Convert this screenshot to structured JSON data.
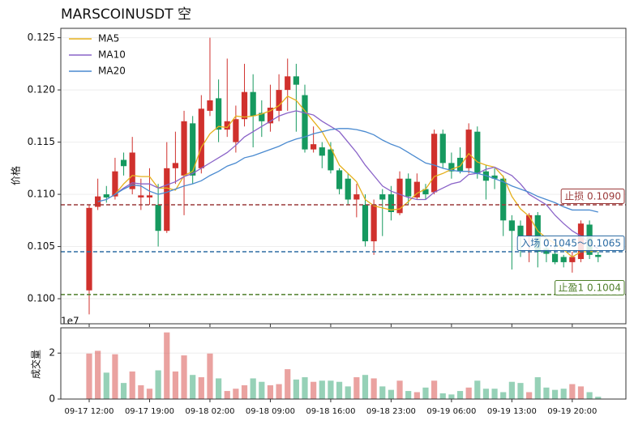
{
  "chart_data": [
    {
      "type": "candlestick",
      "title": "MARSCOINUSDT  空",
      "ylabel": "价格",
      "up_color": "#d0312d",
      "down_color": "#16995f",
      "open": [
        0.1008,
        0.1088,
        0.11,
        0.1098,
        0.1133,
        0.1105,
        0.1097,
        0.1097,
        0.109,
        0.1065,
        0.1125,
        0.1118,
        0.1168,
        0.1125,
        0.118,
        0.1192,
        0.1162,
        0.115,
        0.1172,
        0.1198,
        0.1178,
        0.1168,
        0.118,
        0.12,
        0.1213,
        0.1195,
        0.1143,
        0.1145,
        0.1143,
        0.1123,
        0.1115,
        0.1095,
        0.109,
        0.1055,
        0.11,
        0.11,
        0.1082,
        0.1115,
        0.1097,
        0.1105,
        0.1102,
        0.1158,
        0.113,
        0.1135,
        0.1125,
        0.116,
        0.1122,
        0.1118,
        0.1115,
        0.1075,
        0.107,
        0.106,
        0.108,
        0.1048,
        0.1043,
        0.104,
        0.1035,
        0.1038,
        0.1071,
        0.1042
      ],
      "high": [
        0.109,
        0.1115,
        0.1108,
        0.1135,
        0.114,
        0.1155,
        0.1115,
        0.1125,
        0.111,
        0.115,
        0.116,
        0.118,
        0.1175,
        0.1195,
        0.125,
        0.121,
        0.123,
        0.1185,
        0.1225,
        0.1215,
        0.119,
        0.1205,
        0.1215,
        0.123,
        0.1225,
        0.1205,
        0.1165,
        0.115,
        0.115,
        0.1125,
        0.112,
        0.111,
        0.11,
        0.1095,
        0.1105,
        0.1108,
        0.1122,
        0.112,
        0.112,
        0.111,
        0.1162,
        0.1162,
        0.114,
        0.1145,
        0.1168,
        0.1165,
        0.1128,
        0.1125,
        0.1118,
        0.108,
        0.1075,
        0.1082,
        0.1083,
        0.1052,
        0.105,
        0.1042,
        0.1045,
        0.1075,
        0.1075,
        0.1045
      ],
      "low": [
        0.0985,
        0.1085,
        0.1092,
        0.1095,
        0.1118,
        0.11,
        0.1085,
        0.109,
        0.105,
        0.1063,
        0.111,
        0.108,
        0.111,
        0.112,
        0.1175,
        0.115,
        0.1155,
        0.114,
        0.1165,
        0.1145,
        0.1155,
        0.116,
        0.117,
        0.118,
        0.116,
        0.114,
        0.114,
        0.1125,
        0.112,
        0.11,
        0.109,
        0.1078,
        0.105,
        0.1042,
        0.106,
        0.1075,
        0.108,
        0.109,
        0.1095,
        0.1095,
        0.11,
        0.1125,
        0.1115,
        0.112,
        0.112,
        0.1115,
        0.1095,
        0.1105,
        0.106,
        0.1028,
        0.104,
        0.1035,
        0.103,
        0.1035,
        0.1033,
        0.103,
        0.1025,
        0.1035,
        0.1038,
        0.1035
      ],
      "close": [
        0.1087,
        0.1098,
        0.1097,
        0.1122,
        0.1127,
        0.114,
        0.1099,
        0.1099,
        0.1065,
        0.1125,
        0.113,
        0.117,
        0.1118,
        0.1182,
        0.119,
        0.1162,
        0.117,
        0.1172,
        0.1198,
        0.1175,
        0.117,
        0.1183,
        0.12,
        0.1213,
        0.1205,
        0.1143,
        0.1148,
        0.1137,
        0.1123,
        0.1105,
        0.1095,
        0.11,
        0.1055,
        0.109,
        0.1095,
        0.1083,
        0.1115,
        0.1098,
        0.1112,
        0.11,
        0.1158,
        0.113,
        0.1122,
        0.1122,
        0.1162,
        0.112,
        0.1113,
        0.1115,
        0.1075,
        0.1065,
        0.106,
        0.108,
        0.1045,
        0.1043,
        0.1035,
        0.1035,
        0.104,
        0.1072,
        0.1042,
        0.104
      ],
      "series": [
        {
          "name": "MA5",
          "color": "#e6b01c",
          "values": [
            null,
            null,
            null,
            0.11,
            0.111,
            0.1118,
            0.1117,
            0.1117,
            0.1106,
            0.1106,
            0.1104,
            0.1118,
            0.1122,
            0.1145,
            0.1158,
            0.1165,
            0.1164,
            0.1175,
            0.1174,
            0.1175,
            0.1177,
            0.118,
            0.1185,
            0.1194,
            0.119,
            0.118,
            0.117,
            0.116,
            0.1145,
            0.1128,
            0.112,
            0.1112,
            0.1095,
            0.1089,
            0.1087,
            0.1085,
            0.1086,
            0.1093,
            0.1101,
            0.1105,
            0.1117,
            0.112,
            0.1124,
            0.1127,
            0.1139,
            0.1131,
            0.1128,
            0.1126,
            0.1117,
            0.1098,
            0.1086,
            0.1079,
            0.1065,
            0.1058,
            0.1053,
            0.1047,
            0.104,
            0.1045,
            0.1045,
            0.1046
          ]
        },
        {
          "name": "MA10",
          "color": "#8a63c8",
          "values": [
            null,
            null,
            null,
            0.11,
            0.1106,
            0.1111,
            0.111,
            0.111,
            0.1106,
            0.1109,
            0.1112,
            0.1117,
            0.112,
            0.1125,
            0.113,
            0.1135,
            0.114,
            0.1147,
            0.1155,
            0.116,
            0.1165,
            0.117,
            0.1175,
            0.1178,
            0.118,
            0.1178,
            0.1176,
            0.117,
            0.1165,
            0.116,
            0.115,
            0.114,
            0.1128,
            0.1118,
            0.1108,
            0.1103,
            0.11,
            0.1097,
            0.1095,
            0.1095,
            0.1102,
            0.1106,
            0.111,
            0.1112,
            0.1119,
            0.112,
            0.1124,
            0.1126,
            0.1122,
            0.1118,
            0.111,
            0.11,
            0.1095,
            0.109,
            0.108,
            0.1072,
            0.1065,
            0.106,
            0.1053,
            0.1048
          ]
        },
        {
          "name": "MA20",
          "color": "#4a8ad0",
          "values": [
            null,
            0.1093,
            0.1095,
            0.11,
            0.1105,
            0.1109,
            0.1108,
            0.1103,
            0.11,
            0.1102,
            0.1105,
            0.1108,
            0.111,
            0.1113,
            0.1118,
            0.1122,
            0.1127,
            0.113,
            0.1135,
            0.1137,
            0.114,
            0.1143,
            0.1146,
            0.115,
            0.1153,
            0.1155,
            0.1158,
            0.116,
            0.1162,
            0.1163,
            0.1163,
            0.1162,
            0.116,
            0.1157,
            0.1152,
            0.1148,
            0.1145,
            0.114,
            0.1135,
            0.113,
            0.1128,
            0.1125,
            0.1123,
            0.1122,
            0.1122,
            0.112,
            0.1118,
            0.1115,
            0.1112,
            0.1108,
            0.1105,
            0.1102,
            0.1098,
            0.1095,
            0.1092,
            0.1088,
            0.1085,
            0.1085,
            0.1085,
            0.1083
          ]
        }
      ],
      "ylim": [
        0.0976,
        0.1259
      ],
      "yticks": [
        {
          "value": 0.1,
          "label": "0.100"
        },
        {
          "value": 0.105,
          "label": "0.105"
        },
        {
          "value": 0.11,
          "label": "0.110"
        },
        {
          "value": 0.115,
          "label": "0.115"
        },
        {
          "value": 0.12,
          "label": "0.120"
        },
        {
          "value": 0.125,
          "label": "0.125"
        }
      ],
      "grid": true,
      "legend": "upper left",
      "hlines": [
        {
          "value": 0.109,
          "label": "止损 0.1090",
          "color": "#9b3a3a"
        },
        {
          "value": 0.1045,
          "label": "入场 0.1045～0.1065",
          "color": "#2e6da4"
        },
        {
          "value": 0.1004,
          "label": "止盈1 0.1004",
          "color": "#4f7f2a"
        }
      ]
    },
    {
      "type": "bar",
      "ylabel": "成交量",
      "offset_label": "1e7",
      "categories": [
        "09-17 12:00",
        null,
        null,
        null,
        null,
        null,
        null,
        "09-17 19:00",
        null,
        null,
        null,
        null,
        null,
        null,
        "09-18 02:00",
        null,
        null,
        null,
        null,
        null,
        null,
        "09-18 09:00",
        null,
        null,
        null,
        null,
        null,
        null,
        "09-18 16:00",
        null,
        null,
        null,
        null,
        null,
        null,
        "09-18 23:00",
        null,
        null,
        null,
        null,
        null,
        null,
        "09-19 06:00",
        null,
        null,
        null,
        null,
        null,
        null,
        "09-19 13:00",
        null,
        null,
        null,
        null,
        null,
        null,
        "09-19 20:00",
        null,
        null,
        null
      ],
      "values": [
        1.98,
        2.1,
        1.15,
        1.95,
        0.7,
        1.2,
        0.6,
        0.45,
        1.25,
        2.9,
        1.2,
        1.9,
        1.05,
        0.95,
        1.98,
        0.9,
        0.35,
        0.45,
        0.6,
        0.9,
        0.75,
        0.6,
        0.65,
        1.3,
        0.85,
        0.95,
        0.75,
        0.8,
        0.8,
        0.75,
        0.55,
        0.95,
        1.05,
        0.9,
        0.55,
        0.4,
        0.8,
        0.35,
        0.3,
        0.5,
        0.8,
        0.25,
        0.2,
        0.35,
        0.5,
        0.8,
        0.45,
        0.45,
        0.3,
        0.75,
        0.7,
        0.3,
        0.95,
        0.5,
        0.4,
        0.45,
        0.65,
        0.55,
        0.3,
        0.1
      ],
      "ylim": [
        0,
        3.1
      ],
      "yticks": [
        0,
        2
      ],
      "grid": true
    }
  ]
}
